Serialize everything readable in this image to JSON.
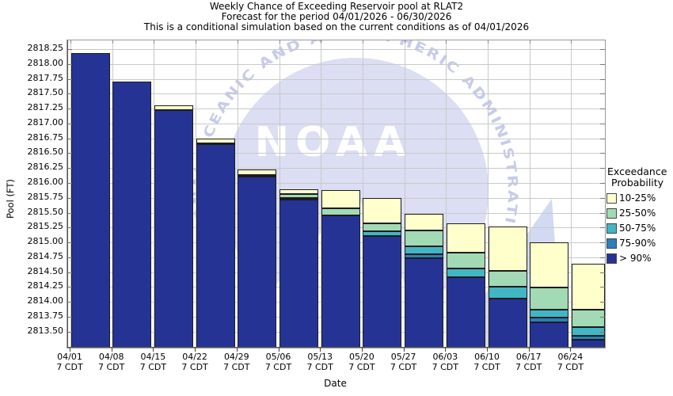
{
  "title": {
    "line1": "Weekly Chance of Exceeding Reservoir pool at RLAT2",
    "line2": "Forecast for the period 04/01/2026 - 06/30/2026",
    "line3": "This is a conditional simulation based on the current conditions as of 04/01/2026"
  },
  "axes": {
    "y_label": "Pool (FT)",
    "x_label": "Date",
    "y_ticks": [
      "2818.25",
      "2818.00",
      "2817.75",
      "2817.50",
      "2817.25",
      "2817.00",
      "2816.75",
      "2816.50",
      "2816.25",
      "2816.00",
      "2815.75",
      "2815.50",
      "2815.25",
      "2815.00",
      "2814.75",
      "2814.50",
      "2814.25",
      "2814.00",
      "2813.75",
      "2813.50"
    ],
    "x_sub_label": "7 CDT"
  },
  "legend": {
    "title_line1": "Exceedance",
    "title_line2": "Probability",
    "entries": [
      {
        "label": "10-25%",
        "color": "#ffffcc"
      },
      {
        "label": "25-50%",
        "color": "#a1dab4"
      },
      {
        "label": "50-75%",
        "color": "#41b6c4"
      },
      {
        "label": "75-90%",
        "color": "#2c7fb8"
      },
      {
        "label": "> 90%",
        "color": "#253494"
      }
    ]
  },
  "watermark": {
    "center_text": "NOAA",
    "arc_text": "NATIONAL OCEANIC AND ATMOSPHERIC ADMINISTRATION",
    "dome_color": "#dcdef4",
    "wing_color": "#d2d9f2",
    "arc_text_color": "#c7cbea",
    "center_text_color": "#ffffff"
  },
  "chart_data": {
    "type": "bar",
    "stacked": true,
    "title": "Weekly Chance of Exceeding Reservoir pool at RLAT2",
    "xlabel": "Date",
    "ylabel": "Pool (FT)",
    "ylim": [
      2813.23,
      2818.4
    ],
    "ytick_min": 2813.5,
    "ytick_max": 2818.25,
    "ytick_step": 0.25,
    "grid": true,
    "legend_position": "right",
    "bar_base": 2813.23,
    "series": [
      {
        "id": "gt90",
        "label": "> 90%",
        "color": "#253494"
      },
      {
        "id": "p75_90",
        "label": "75-90%",
        "color": "#2c7fb8"
      },
      {
        "id": "p50_75",
        "label": "50-75%",
        "color": "#41b6c4"
      },
      {
        "id": "p25_50",
        "label": "25-50%",
        "color": "#a1dab4"
      },
      {
        "id": "p10_25",
        "label": "10-25%",
        "color": "#ffffcc"
      }
    ],
    "categories": [
      "04/01",
      "04/08",
      "04/15",
      "04/22",
      "04/29",
      "05/06",
      "05/13",
      "05/20",
      "05/27",
      "06/03",
      "06/10",
      "06/17",
      "06/24"
    ],
    "bars": [
      {
        "date": "04/01",
        "tops": {
          "gt90": 2818.19
        }
      },
      {
        "date": "04/08",
        "tops": {
          "gt90": 2817.71
        }
      },
      {
        "date": "04/15",
        "tops": {
          "gt90": 2817.23,
          "p10_25": 2817.3
        }
      },
      {
        "date": "04/22",
        "tops": {
          "gt90": 2816.65,
          "p25_50": 2816.67,
          "p10_25": 2816.75
        }
      },
      {
        "date": "04/29",
        "tops": {
          "gt90": 2816.1,
          "p25_50": 2816.13,
          "p10_25": 2816.22
        }
      },
      {
        "date": "05/06",
        "tops": {
          "gt90": 2815.72,
          "p50_75": 2815.75,
          "p25_50": 2815.81,
          "p10_25": 2815.89
        }
      },
      {
        "date": "05/13",
        "tops": {
          "gt90": 2815.46,
          "p25_50": 2815.57,
          "p10_25": 2815.88
        }
      },
      {
        "date": "05/20",
        "tops": {
          "gt90": 2815.11,
          "p50_75": 2815.19,
          "p25_50": 2815.32,
          "p10_25": 2815.75
        }
      },
      {
        "date": "05/27",
        "tops": {
          "gt90": 2814.74,
          "p75_90": 2814.8,
          "p50_75": 2814.93,
          "p25_50": 2815.2,
          "p10_25": 2815.48
        }
      },
      {
        "date": "06/03",
        "tops": {
          "gt90": 2814.41,
          "p50_75": 2814.56,
          "p25_50": 2814.83,
          "p10_25": 2815.32
        }
      },
      {
        "date": "06/10",
        "tops": {
          "gt90": 2814.05,
          "p50_75": 2814.25,
          "p25_50": 2814.52,
          "p10_25": 2815.27
        }
      },
      {
        "date": "06/17",
        "tops": {
          "gt90": 2813.66,
          "p75_90": 2813.73,
          "p50_75": 2813.87,
          "p25_50": 2814.24,
          "p10_25": 2815.0
        }
      },
      {
        "date": "06/24",
        "tops": {
          "gt90": 2813.36,
          "p75_90": 2813.43,
          "p50_75": 2813.57,
          "p25_50": 2813.87,
          "p10_25": 2814.64
        }
      }
    ]
  }
}
